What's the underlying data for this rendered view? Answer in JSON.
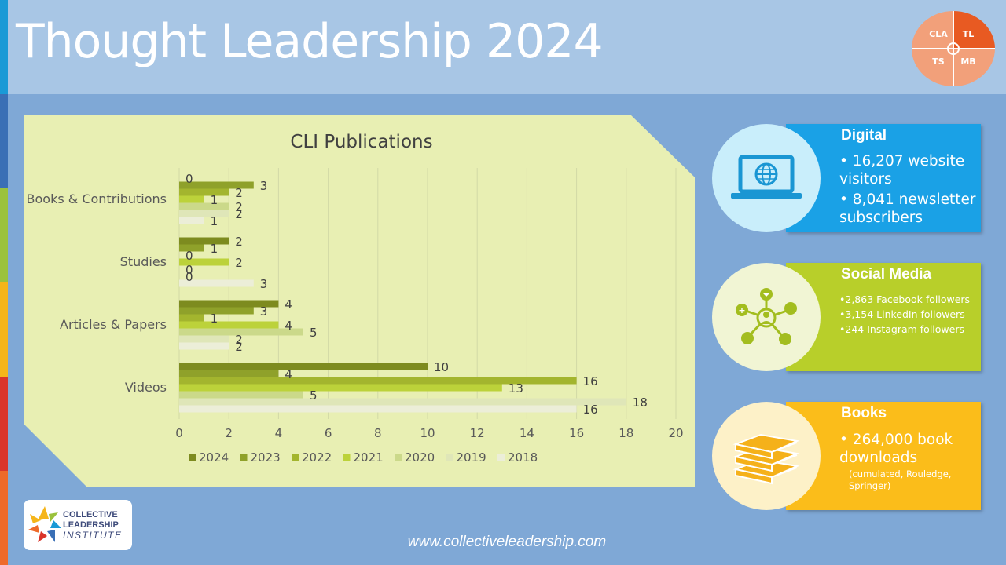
{
  "page": {
    "title": "Thought Leadership 2024",
    "footer_url": "www.collectiveleadership.com"
  },
  "mini_logo": {
    "quadrants": [
      "CLA",
      "TL",
      "TS",
      "MB"
    ]
  },
  "logo": {
    "line1": "COLLECTIVE",
    "line2": "LEADERSHIP",
    "line3": "INSTITUTE"
  },
  "colors": {
    "header": "#a8c6e5",
    "background": "#7fa8d6",
    "digital": "#1aa1e6",
    "social": "#b8cf2a",
    "books": "#fbbd1a"
  },
  "cards": [
    {
      "title": "Digital",
      "icon": "laptop-globe-icon",
      "items": [
        "16,207 website visitors",
        "8,041 newsletter subscribers"
      ]
    },
    {
      "title": "Social Media",
      "icon": "social-network-icon",
      "items": [
        "2,863 Facebook followers",
        "3,154 LinkedIn followers",
        "244 Instagram followers"
      ]
    },
    {
      "title": "Books",
      "icon": "book-stack-icon",
      "items": [
        "264,000 book downloads"
      ],
      "note": "(cumulated, Rouledge, Springer)"
    }
  ],
  "chart_data": {
    "type": "bar",
    "orientation": "horizontal",
    "title": "CLI Publications",
    "categories": [
      "Books & Contributions",
      "Studies",
      "Articles & Papers",
      "Videos"
    ],
    "series": [
      {
        "name": "2024",
        "color": "#7d8b1f",
        "values": [
          0,
          2,
          4,
          10
        ]
      },
      {
        "name": "2023",
        "color": "#8fa12a",
        "values": [
          3,
          1,
          3,
          4
        ]
      },
      {
        "name": "2022",
        "color": "#a3b52e",
        "values": [
          2,
          0,
          1,
          16
        ]
      },
      {
        "name": "2021",
        "color": "#bcd23a",
        "values": [
          1,
          2,
          4,
          13
        ]
      },
      {
        "name": "2020",
        "color": "#cbd98a",
        "values": [
          2,
          0,
          5,
          5
        ]
      },
      {
        "name": "2019",
        "color": "#dfe6b8",
        "values": [
          2,
          0,
          2,
          18
        ]
      },
      {
        "name": "2018",
        "color": "#eceed8",
        "values": [
          1,
          3,
          2,
          16
        ]
      }
    ],
    "xlim": [
      0,
      20
    ],
    "xticks": [
      "0",
      "2",
      "4",
      "6",
      "8",
      "10",
      "12",
      "14",
      "16",
      "18",
      "20"
    ],
    "grid": true,
    "legend_position": "bottom"
  }
}
